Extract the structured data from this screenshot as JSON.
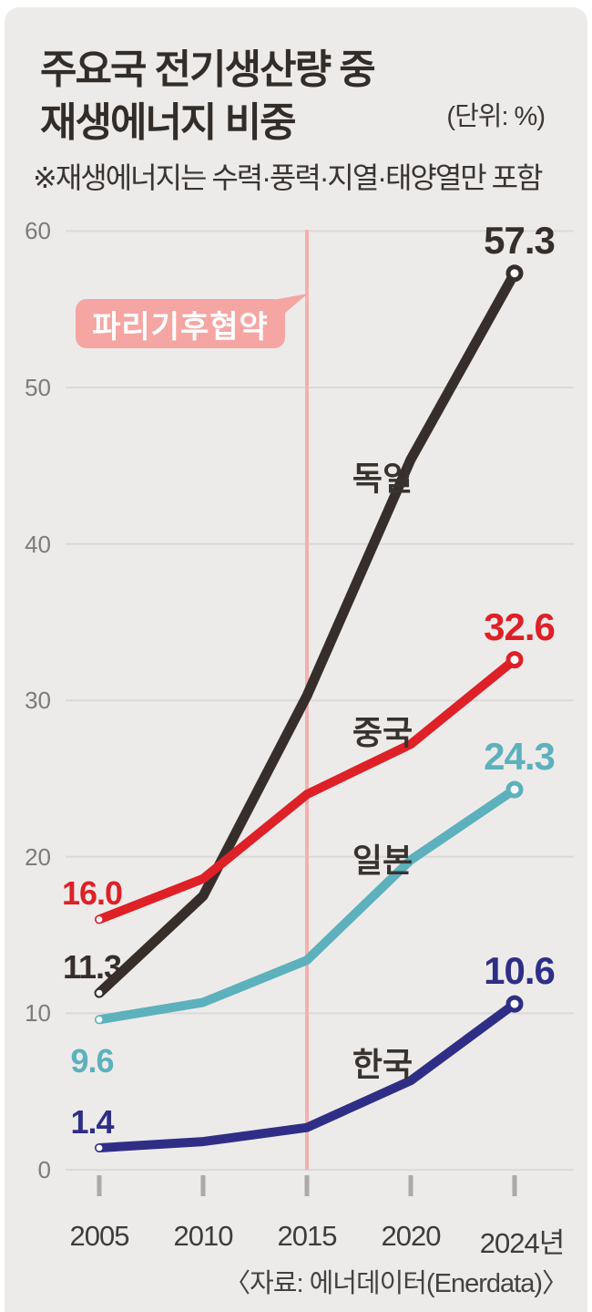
{
  "header": {
    "title_line1": "주요국 전기생산량 중",
    "title_line2": "재생에너지 비중",
    "unit": "(단위: %)",
    "note": "※재생에너지는 수력·풍력·지열·태양열만 포함"
  },
  "annotation": {
    "label": "파리기후협약"
  },
  "source": "〈자료: 에너데이터(Enerdata)〉",
  "colors": {
    "background": "#edebe9",
    "gridline": "#dbd9d7",
    "y_axis_text": "#7e7b78",
    "x_axis_text": "#3f3b39",
    "tick": "#abaaa8",
    "event_line": "#f4b1ae",
    "callout_bg": "#f5a6a3",
    "callout_text": "#ffffff"
  },
  "chart_data": {
    "type": "line",
    "title": "주요국 전기생산량 중 재생에너지 비중",
    "x_tick_labels": [
      "2005",
      "2010",
      "2015",
      "2020",
      "2024년"
    ],
    "y_ticks": [
      0,
      10,
      20,
      30,
      40,
      50,
      60
    ],
    "ylim": [
      0,
      60
    ],
    "grid": true,
    "event_line_x": "2015",
    "event_label": "파리기후협약",
    "series": [
      {
        "name": "독일",
        "color": "#362e2a",
        "values": [
          11.3,
          17.5,
          30.3,
          45.4,
          57.3
        ],
        "start_label": "11.3",
        "end_label": "57.3"
      },
      {
        "name": "중국",
        "color": "#de2027",
        "values": [
          16.0,
          18.6,
          24.0,
          27.2,
          32.6
        ],
        "start_label": "16.0",
        "end_label": "32.6"
      },
      {
        "name": "일본",
        "color": "#5cb1bd",
        "values": [
          9.6,
          10.7,
          13.4,
          19.8,
          24.3
        ],
        "start_label": "9.6",
        "end_label": "24.3"
      },
      {
        "name": "한국",
        "color": "#2f2e87",
        "values": [
          1.4,
          1.8,
          2.7,
          5.7,
          10.6
        ],
        "start_label": "1.4",
        "end_label": "10.6"
      }
    ]
  }
}
